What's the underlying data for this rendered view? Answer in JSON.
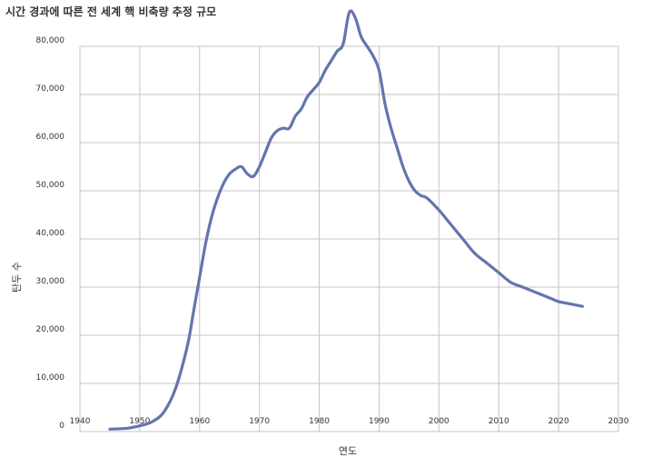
{
  "chart_data": {
    "type": "line",
    "title": "시간 경과에 따른 전 세계 핵 비축량 추정 규모",
    "xlabel": "연도",
    "ylabel": "탄두 수",
    "xlim": [
      1940,
      2030
    ],
    "ylim": [
      0,
      80000
    ],
    "x_ticks": [
      1940,
      1950,
      1960,
      1970,
      1980,
      1990,
      2000,
      2010,
      2020,
      2030
    ],
    "x_tick_labels": [
      "1940",
      "1950",
      "1960",
      "1970",
      "1980",
      "1990",
      "2000",
      "2010",
      "2020",
      "2030"
    ],
    "y_ticks": [
      0,
      10000,
      20000,
      30000,
      40000,
      50000,
      60000,
      70000,
      80000
    ],
    "y_tick_labels": [
      "0",
      "10,000",
      "20,000",
      "30,000",
      "40,000",
      "50,000",
      "60,000",
      "70,000",
      "80,000"
    ],
    "grid": true,
    "series_color": "#6475ad",
    "series": [
      {
        "x": [
          1945,
          1948,
          1950,
          1952,
          1954,
          1956,
          1958,
          1959,
          1960,
          1961,
          1962,
          1963,
          1964,
          1965,
          1966,
          1967,
          1968,
          1969,
          1970,
          1971,
          1972,
          1973,
          1974,
          1975,
          1976,
          1977,
          1978,
          1979,
          1980,
          1981,
          1982,
          1983,
          1984,
          1985,
          1986,
          1987,
          1988,
          1989,
          1990,
          1991,
          1992,
          1993,
          1994,
          1995,
          1996,
          1997,
          1998,
          2000,
          2002,
          2004,
          2006,
          2008,
          2010,
          2012,
          2014,
          2016,
          2018,
          2019,
          2020,
          2022,
          2024
        ],
        "y": [
          500,
          700,
          1200,
          2000,
          4000,
          9000,
          18000,
          25000,
          32000,
          39000,
          44500,
          48500,
          51500,
          53500,
          54500,
          55000,
          53500,
          53000,
          55000,
          58000,
          61000,
          62500,
          63000,
          63000,
          65500,
          67000,
          69500,
          71000,
          72500,
          75000,
          77000,
          79000,
          80500,
          87000,
          86000,
          82000,
          80000,
          78000,
          75000,
          68000,
          63000,
          59000,
          55000,
          52000,
          50000,
          49000,
          48500,
          46000,
          43000,
          40000,
          37000,
          35000,
          33000,
          31000,
          30000,
          29000,
          28000,
          27500,
          27000,
          26500,
          26000
        ]
      }
    ]
  }
}
